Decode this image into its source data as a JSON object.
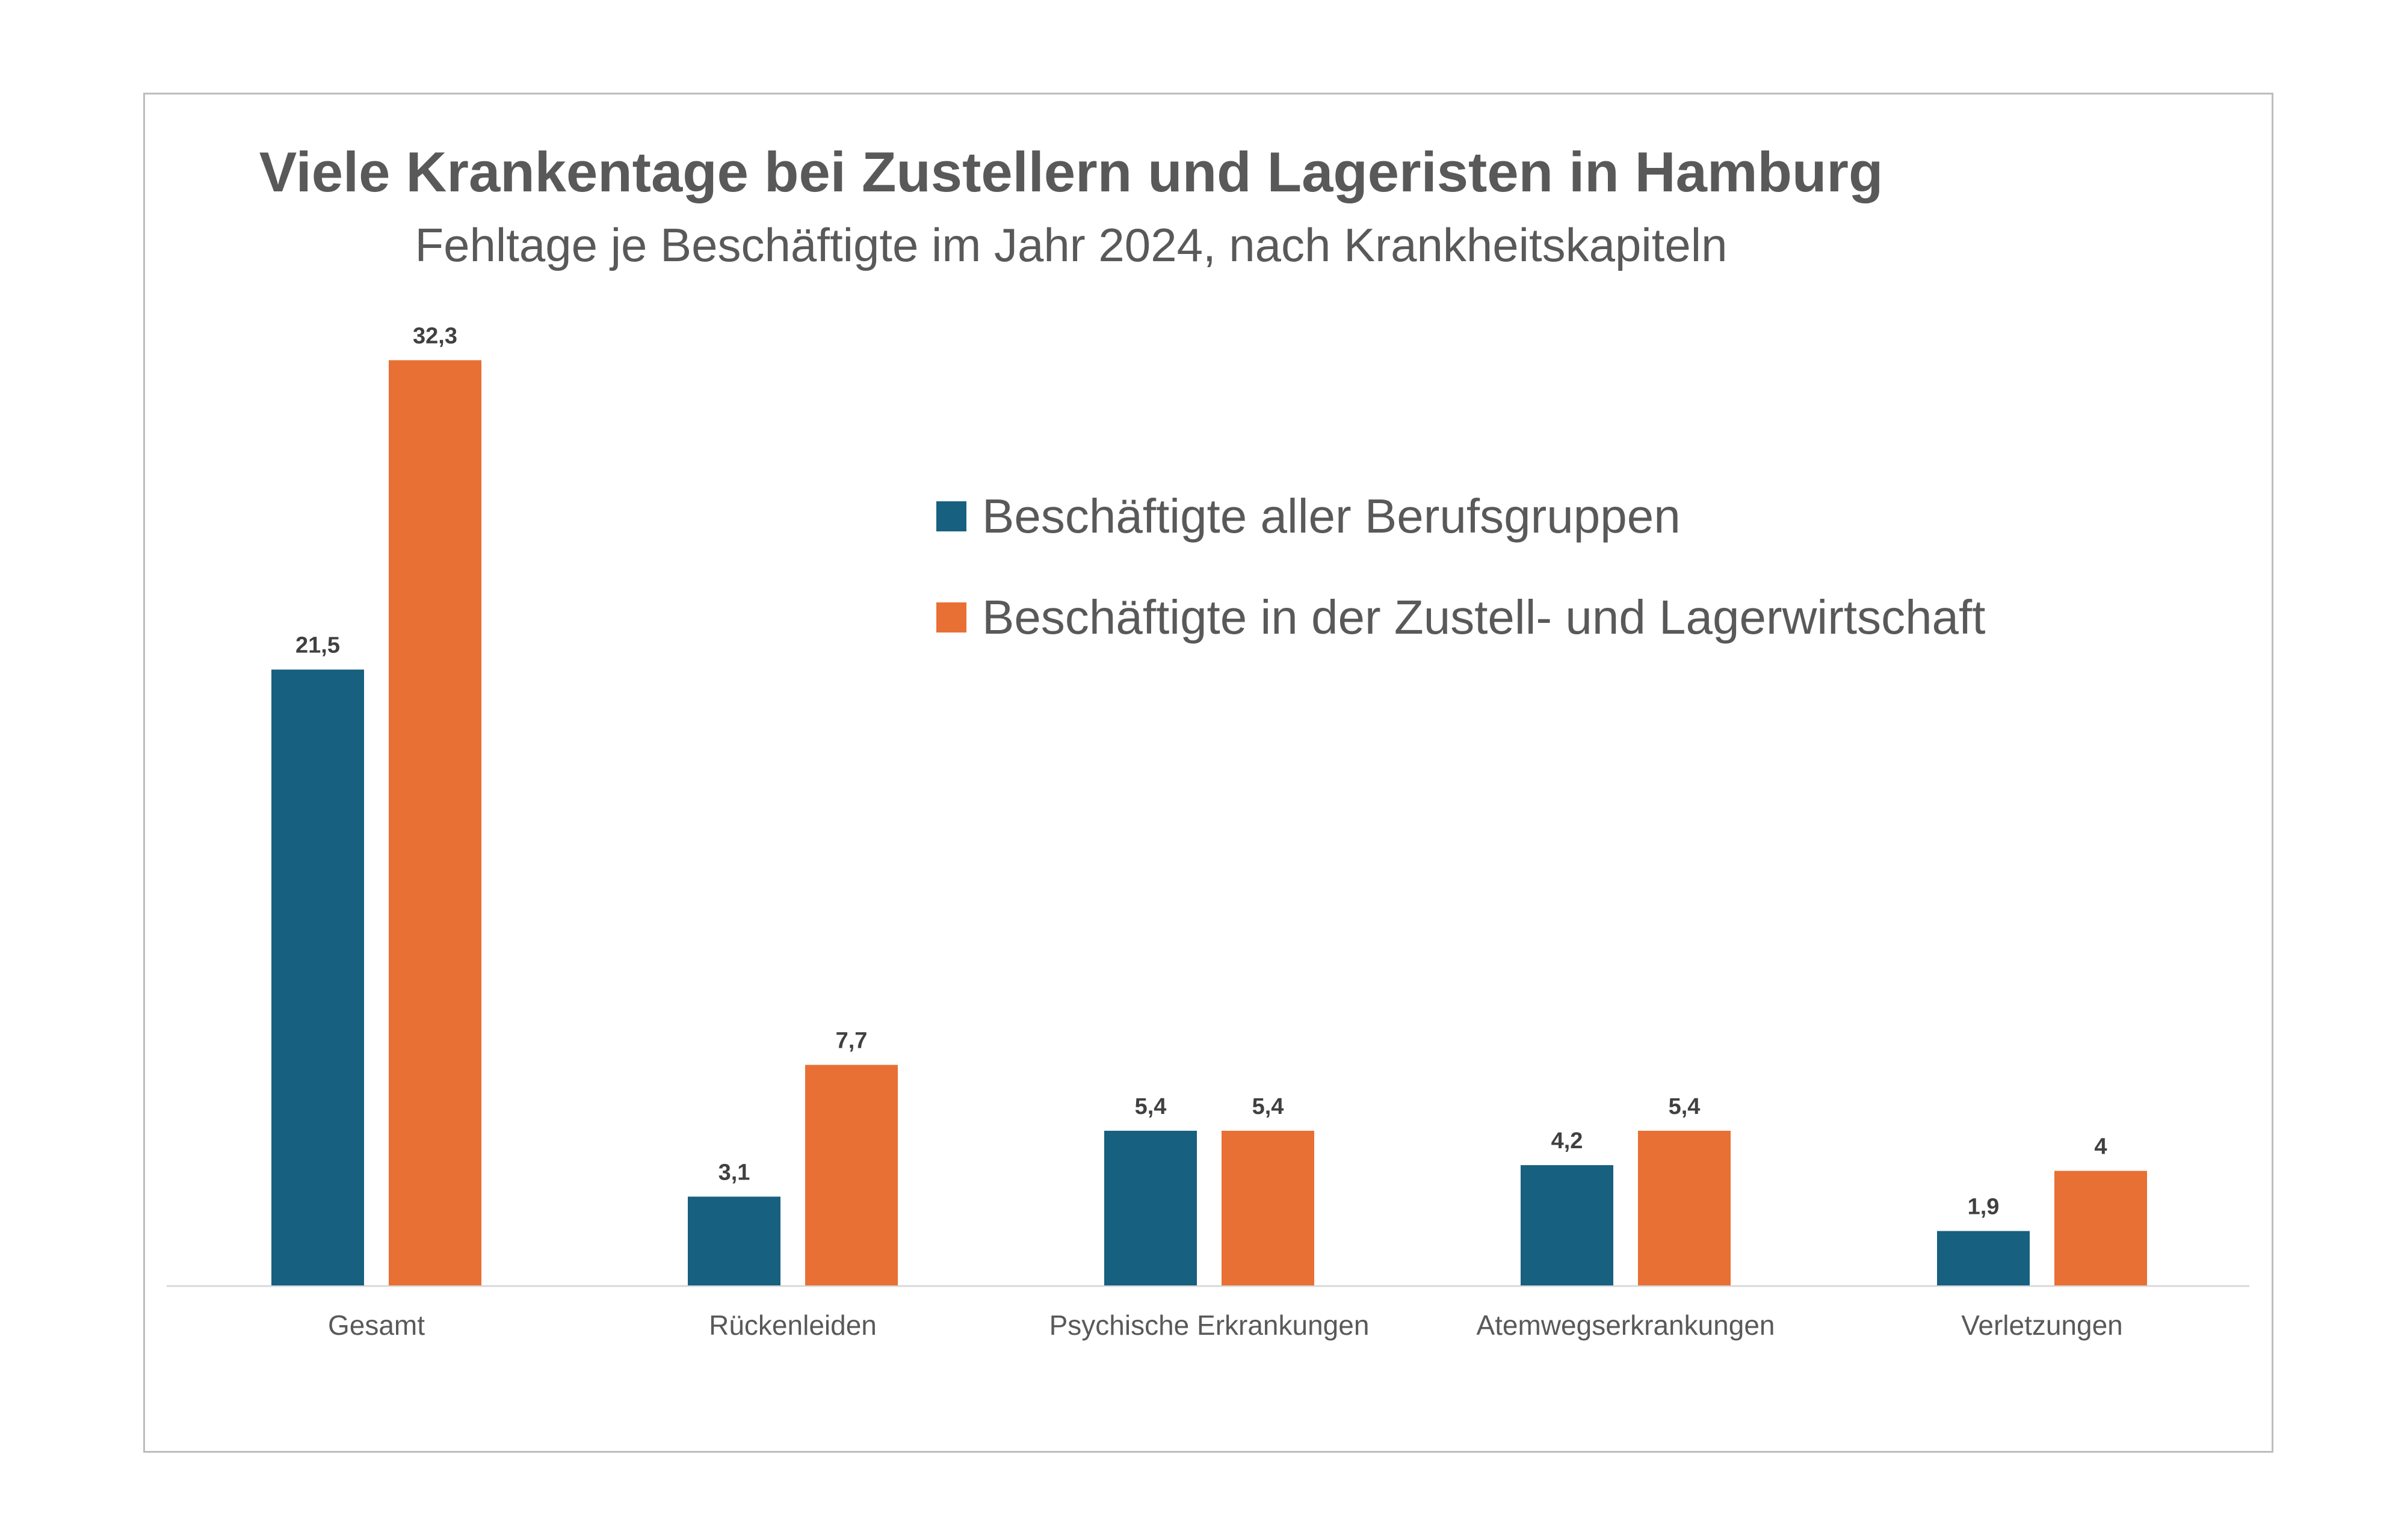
{
  "chart_data": {
    "type": "bar",
    "title": "Viele Krankentage bei Zustellern und Lageristen in Hamburg",
    "subtitle": "Fehltage je Beschäftigte im Jahr 2024, nach Krankheitskapiteln",
    "categories": [
      "Gesamt",
      "Rückenleiden",
      "Psychische Erkrankungen",
      "Atemwegserkrankungen",
      "Verletzungen"
    ],
    "series": [
      {
        "name": "Beschäftigte aller Berufsgruppen",
        "color": "#17607f",
        "values": [
          21.5,
          3.1,
          5.4,
          4.2,
          1.9
        ],
        "labels": [
          "21,5",
          "3,1",
          "5,4",
          "4,2",
          "1,9"
        ]
      },
      {
        "name": "Beschäftigte in der Zustell- und Lagerwirtschaft",
        "color": "#e87034",
        "values": [
          32.3,
          7.7,
          5.4,
          5.4,
          4
        ],
        "labels": [
          "32,3",
          "7,7",
          "5,4",
          "5,4",
          "4"
        ]
      }
    ],
    "xlabel": "",
    "ylabel": "",
    "ylim": [
      0,
      32.3
    ],
    "grid": false,
    "legend": "top-right"
  }
}
